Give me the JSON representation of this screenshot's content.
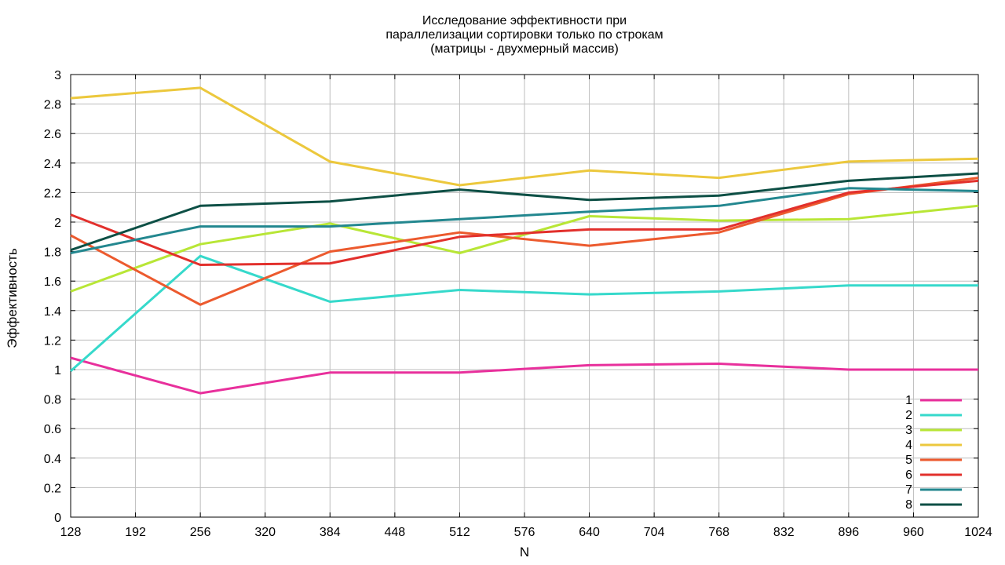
{
  "chart_data": {
    "type": "line",
    "title": [
      "Исследование эффективности при",
      "параллелизации сортировки только по строкам",
      "(матрицы - двухмерный массив)"
    ],
    "xlabel": "N",
    "ylabel": "Эффективность",
    "xlim": [
      128,
      1024
    ],
    "ylim": [
      0,
      3
    ],
    "xticks": [
      128,
      192,
      256,
      320,
      384,
      448,
      512,
      576,
      640,
      704,
      768,
      832,
      896,
      960,
      1024
    ],
    "yticks": [
      "0",
      "0.2",
      "0.4",
      "0.6",
      "0.8",
      "1",
      "1.2",
      "1.4",
      "1.6",
      "1.8",
      "2",
      "2.2",
      "2.4",
      "2.6",
      "2.8",
      "3"
    ],
    "grid": true,
    "legend_position": "bottom-right",
    "x": [
      128,
      256,
      384,
      512,
      640,
      768,
      896,
      1024
    ],
    "series": [
      {
        "name": "1",
        "color": "#e8309c",
        "values": [
          1.08,
          0.84,
          0.98,
          0.98,
          1.03,
          1.04,
          1.0,
          1.0
        ]
      },
      {
        "name": "2",
        "color": "#36d9cb",
        "values": [
          0.99,
          1.77,
          1.46,
          1.54,
          1.51,
          1.53,
          1.57,
          1.57
        ]
      },
      {
        "name": "3",
        "color": "#b8e636",
        "values": [
          1.53,
          1.85,
          1.99,
          1.79,
          2.04,
          2.01,
          2.02,
          2.11
        ]
      },
      {
        "name": "4",
        "color": "#ecc83d",
        "values": [
          2.84,
          2.91,
          2.41,
          2.25,
          2.35,
          2.3,
          2.41,
          2.43
        ]
      },
      {
        "name": "5",
        "color": "#ec5a2e",
        "values": [
          1.91,
          1.44,
          1.8,
          1.93,
          1.84,
          1.93,
          2.19,
          2.3
        ]
      },
      {
        "name": "6",
        "color": "#e2302c",
        "values": [
          2.05,
          1.71,
          1.72,
          1.9,
          1.95,
          1.95,
          2.2,
          2.28
        ]
      },
      {
        "name": "7",
        "color": "#23878f",
        "values": [
          1.79,
          1.97,
          1.97,
          2.02,
          2.07,
          2.11,
          2.23,
          2.21
        ]
      },
      {
        "name": "8",
        "color": "#0d4f45",
        "values": [
          1.81,
          2.11,
          2.14,
          2.22,
          2.15,
          2.18,
          2.28,
          2.33
        ]
      }
    ]
  }
}
